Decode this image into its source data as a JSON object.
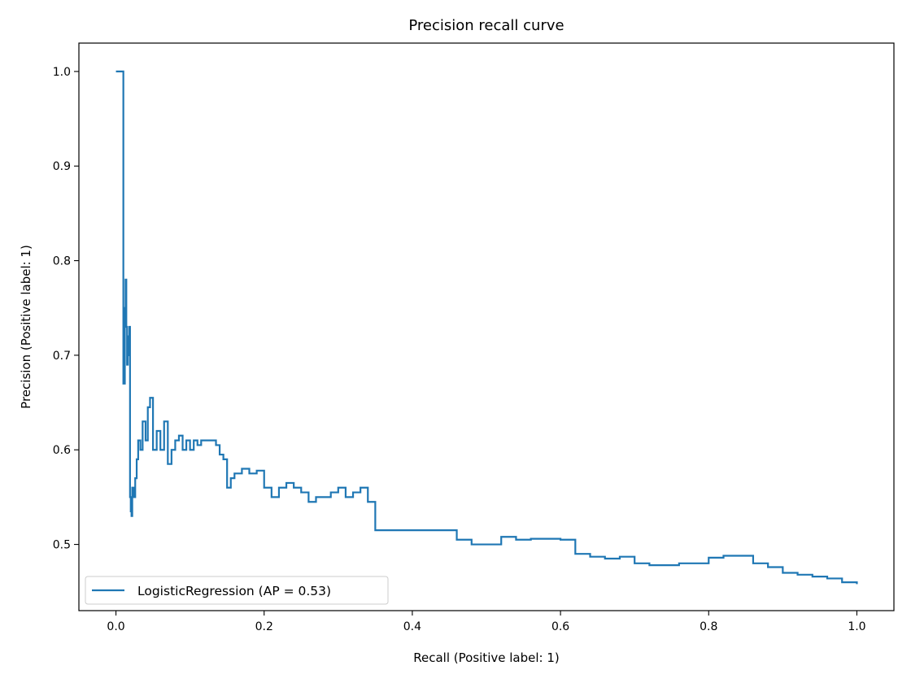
{
  "chart_data": {
    "type": "line",
    "title": "Precision recall curve",
    "xlabel": "Recall (Positive label: 1)",
    "ylabel": "Precision (Positive label: 1)",
    "xlim": [
      -0.05,
      1.05
    ],
    "ylim": [
      0.43,
      1.03
    ],
    "xticks": [
      0.0,
      0.2,
      0.4,
      0.6,
      0.8,
      1.0
    ],
    "xtick_labels": [
      "0.0",
      "0.2",
      "0.4",
      "0.6",
      "0.8",
      "1.0"
    ],
    "yticks": [
      0.5,
      0.6,
      0.7,
      0.8,
      0.9,
      1.0
    ],
    "ytick_labels": [
      "0.5",
      "0.6",
      "0.7",
      "0.8",
      "0.9",
      "1.0"
    ],
    "grid": false,
    "legend_position": "lower-left",
    "line_color": "#1f77b4",
    "series": [
      {
        "name": "LogisticRegression (AP = 0.53)",
        "step": true,
        "x": [
          0.0,
          0.01,
          0.01,
          0.012,
          0.013,
          0.014,
          0.015,
          0.016,
          0.017,
          0.018,
          0.019,
          0.02,
          0.021,
          0.022,
          0.024,
          0.026,
          0.028,
          0.03,
          0.033,
          0.036,
          0.04,
          0.043,
          0.046,
          0.05,
          0.055,
          0.06,
          0.065,
          0.07,
          0.075,
          0.08,
          0.085,
          0.09,
          0.095,
          0.1,
          0.105,
          0.11,
          0.115,
          0.12,
          0.135,
          0.14,
          0.145,
          0.15,
          0.155,
          0.16,
          0.17,
          0.18,
          0.19,
          0.2,
          0.21,
          0.22,
          0.23,
          0.24,
          0.25,
          0.26,
          0.27,
          0.28,
          0.29,
          0.3,
          0.31,
          0.32,
          0.33,
          0.34,
          0.35,
          0.45,
          0.46,
          0.48,
          0.5,
          0.52,
          0.54,
          0.56,
          0.6,
          0.62,
          0.64,
          0.66,
          0.68,
          0.7,
          0.72,
          0.74,
          0.76,
          0.78,
          0.8,
          0.82,
          0.84,
          0.86,
          0.88,
          0.9,
          0.92,
          0.94,
          0.96,
          0.98,
          1.0
        ],
        "y": [
          1.0,
          1.0,
          0.67,
          0.75,
          0.78,
          0.73,
          0.69,
          0.72,
          0.7,
          0.73,
          0.55,
          0.535,
          0.53,
          0.56,
          0.55,
          0.57,
          0.59,
          0.61,
          0.6,
          0.63,
          0.61,
          0.645,
          0.655,
          0.6,
          0.62,
          0.6,
          0.63,
          0.585,
          0.6,
          0.61,
          0.615,
          0.6,
          0.61,
          0.6,
          0.61,
          0.605,
          0.61,
          0.61,
          0.605,
          0.595,
          0.59,
          0.56,
          0.57,
          0.575,
          0.58,
          0.575,
          0.578,
          0.56,
          0.55,
          0.56,
          0.565,
          0.56,
          0.555,
          0.545,
          0.55,
          0.55,
          0.555,
          0.56,
          0.55,
          0.555,
          0.56,
          0.545,
          0.515,
          0.515,
          0.505,
          0.5,
          0.5,
          0.508,
          0.505,
          0.506,
          0.505,
          0.49,
          0.487,
          0.485,
          0.487,
          0.48,
          0.478,
          0.478,
          0.48,
          0.48,
          0.486,
          0.488,
          0.488,
          0.48,
          0.476,
          0.47,
          0.468,
          0.466,
          0.464,
          0.46,
          0.458
        ]
      }
    ]
  }
}
